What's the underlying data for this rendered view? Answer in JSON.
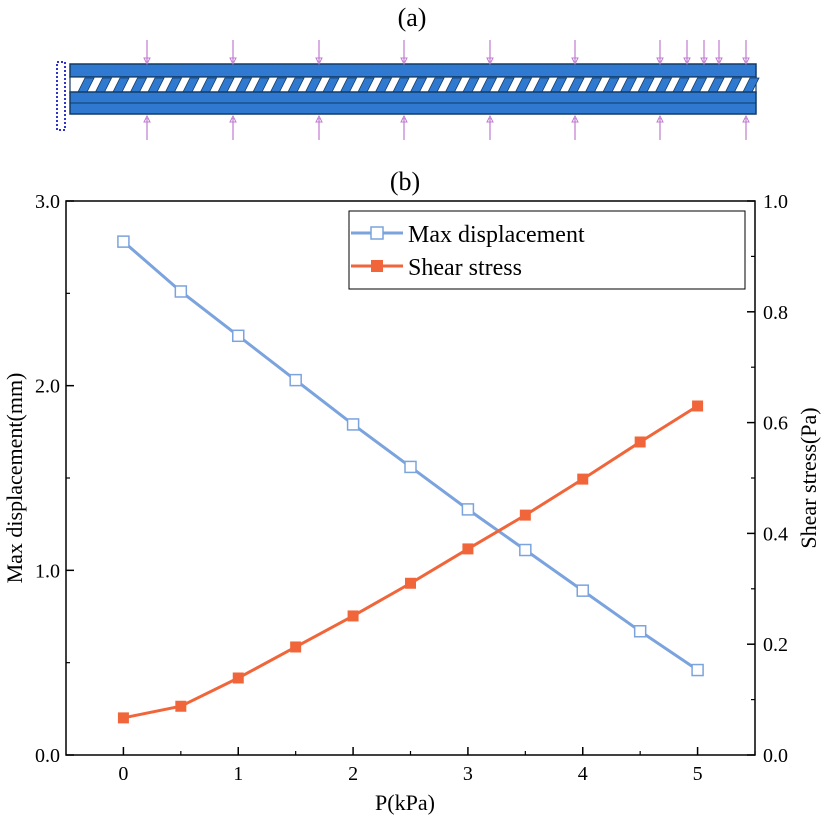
{
  "panel_a": {
    "label": "(a)"
  },
  "chart_data": {
    "type": "line",
    "title": "(b)",
    "xlabel": "P(kPa)",
    "ylabel": "Max displacement(mm)",
    "y2label": "Shear stress(Pa)",
    "xlim": [
      -0.5,
      5.5
    ],
    "ylim": [
      0,
      3.0
    ],
    "y2lim": [
      0,
      1.0
    ],
    "xticks": [
      0,
      1,
      2,
      3,
      4,
      5
    ],
    "xtick_labels": [
      "0",
      "1",
      "2",
      "3",
      "4",
      "5"
    ],
    "yticks": [
      0,
      1,
      2,
      3
    ],
    "ytick_labels": [
      "0.0",
      "1.0",
      "2.0",
      "3.0"
    ],
    "y2ticks": [
      0,
      0.2,
      0.4,
      0.6,
      0.8,
      1.0
    ],
    "y2tick_labels": [
      "0.0",
      "0.2",
      "0.4",
      "0.6",
      "0.8",
      "1.0"
    ],
    "legend_position": "top-right",
    "grid": false,
    "x": [
      0,
      0.5,
      1,
      1.5,
      2,
      2.5,
      3,
      3.5,
      4,
      4.5,
      5
    ],
    "series": [
      {
        "name": "Max displacement",
        "axis": "left",
        "color": "#7BA3DE",
        "marker": "open-square",
        "values": [
          2.78,
          2.51,
          2.27,
          2.03,
          1.79,
          1.56,
          1.33,
          1.11,
          0.89,
          0.67,
          0.46
        ]
      },
      {
        "name": "Shear stress",
        "axis": "right",
        "color": "#F0663A",
        "marker": "filled-square",
        "values": [
          0.067,
          0.088,
          0.139,
          0.195,
          0.251,
          0.31,
          0.372,
          0.433,
          0.498,
          0.565,
          0.63
        ]
      }
    ]
  }
}
